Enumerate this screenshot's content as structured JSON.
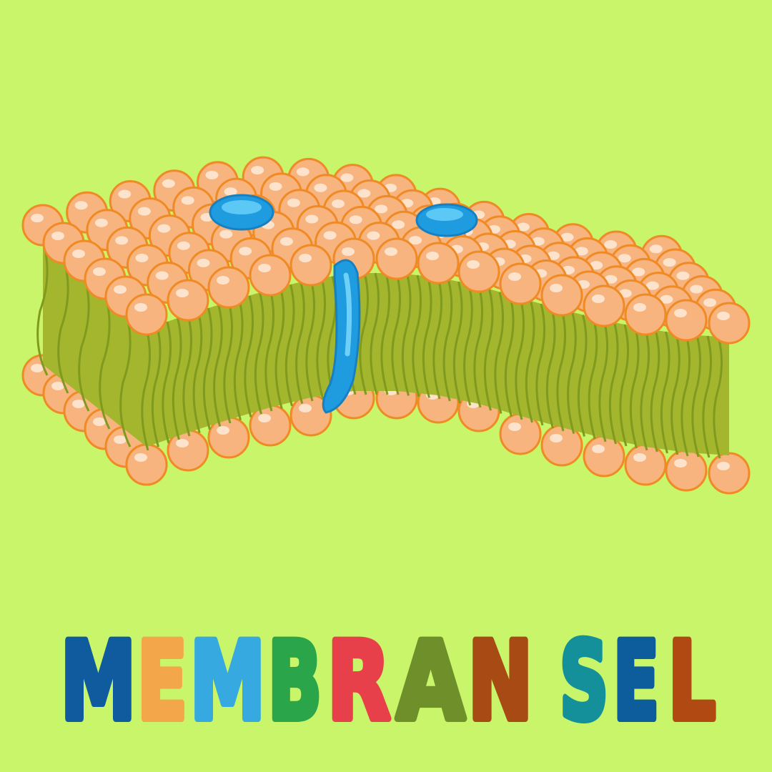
{
  "title": {
    "words": [
      {
        "letters": [
          {
            "text": "M",
            "color": "#0f5b9e"
          },
          {
            "text": "E",
            "color": "#f3a64a"
          },
          {
            "text": "M",
            "color": "#36a9e1"
          },
          {
            "text": "B",
            "color": "#2aa54a"
          },
          {
            "text": "R",
            "color": "#e8404a"
          },
          {
            "text": "A",
            "color": "#6f8f2a"
          },
          {
            "text": "N",
            "color": "#a84a14"
          }
        ]
      },
      {
        "letters": [
          {
            "text": "S",
            "color": "#14909a"
          },
          {
            "text": "E",
            "color": "#0d5c9c"
          },
          {
            "text": "L",
            "color": "#b04a12"
          }
        ]
      }
    ]
  }
}
